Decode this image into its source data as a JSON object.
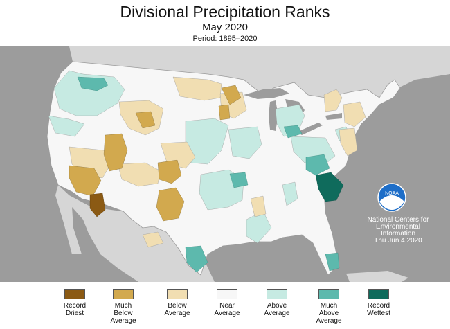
{
  "header": {
    "title": "Divisional Precipitation Ranks",
    "subtitle": "May 2020",
    "period": "Period: 1895–2020"
  },
  "colors": {
    "record_driest": "#8B5A14",
    "much_below": "#D2A94E",
    "below": "#F1DEB2",
    "near": "#F7F7F7",
    "above": "#C6EAE2",
    "much_above": "#5DB9AD",
    "record_wettest": "#0F6B5C",
    "ocean": "#9C9C9C",
    "land_outside": "#D6D6D6"
  },
  "legend": [
    {
      "label": "Record\nDriest",
      "color": "#8B5A14"
    },
    {
      "label": "Much\nBelow\nAverage",
      "color": "#D2A94E"
    },
    {
      "label": "Below\nAverage",
      "color": "#F1DEB2"
    },
    {
      "label": "Near\nAverage",
      "color": "#F7F7F7"
    },
    {
      "label": "Above\nAverage",
      "color": "#C6EAE2"
    },
    {
      "label": "Much\nAbove\nAverage",
      "color": "#5DB9AD"
    },
    {
      "label": "Record\nWettest",
      "color": "#0F6B5C"
    }
  ],
  "logo": {
    "org_line1": "National Centers for",
    "org_line2": "Environmental",
    "org_line3": "Information",
    "date": "Thu Jun  4 2020",
    "logo_text": "NOAA"
  }
}
